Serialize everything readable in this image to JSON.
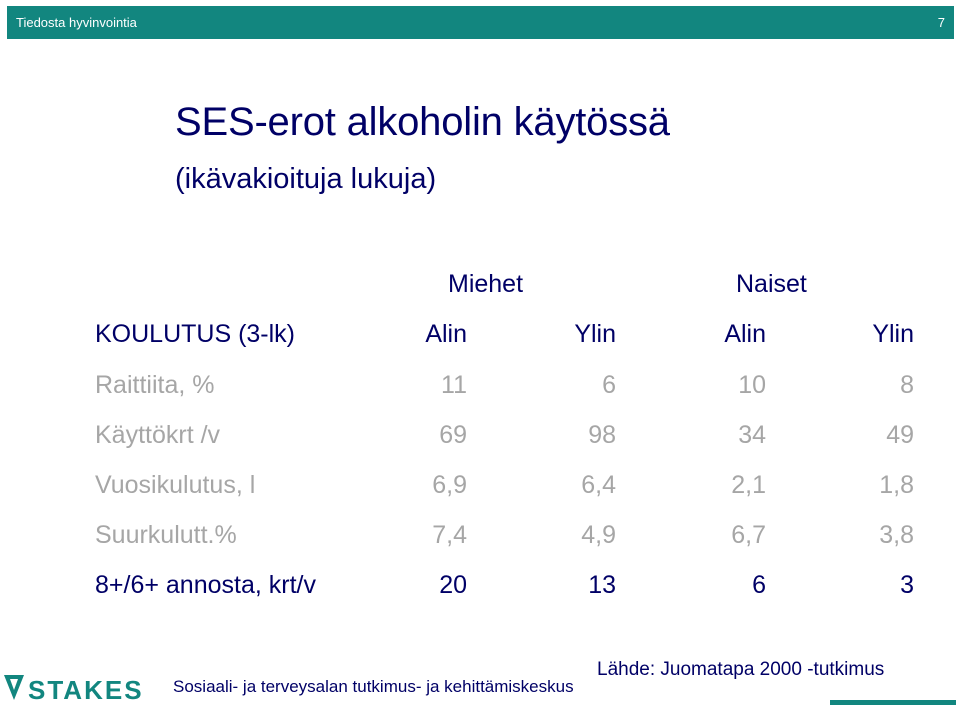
{
  "header": {
    "title": "Tiedosta hyvinvointia",
    "page_number": "7"
  },
  "slide": {
    "title": "SES-erot alkoholin käytössä",
    "subtitle": "(ikävakioituja lukuja)"
  },
  "table": {
    "groups": [
      "Miehet",
      "Naiset"
    ],
    "header_label": "KOULUTUS (3-lk)",
    "columns": [
      "Alin",
      "Ylin",
      "Alin",
      "Ylin"
    ],
    "rows": [
      {
        "label": "Raittiita, %",
        "values": [
          "11",
          "6",
          "10",
          "8"
        ]
      },
      {
        "label": "Käyttökrt /v",
        "values": [
          "69",
          "98",
          "34",
          "49"
        ]
      },
      {
        "label": "Vuosikulutus, l",
        "values": [
          "6,9",
          "6,4",
          "2,1",
          "1,8"
        ]
      },
      {
        "label": "Suurkulutt.%",
        "values": [
          "7,4",
          "4,9",
          "6,7",
          "3,8"
        ]
      },
      {
        "label": "8+/6+ annosta, krt/v",
        "values": [
          "20",
          "13",
          "6",
          "3"
        ]
      }
    ]
  },
  "footer": {
    "logo_text": "STAKES",
    "org": "Sosiaali- ja terveysalan tutkimus- ja kehittämiskeskus",
    "source": "Lähde: Juomatapa 2000 -tutkimus"
  },
  "colors": {
    "accent": "#12867f",
    "text": "#000066",
    "muted": "#a6a6a6"
  }
}
